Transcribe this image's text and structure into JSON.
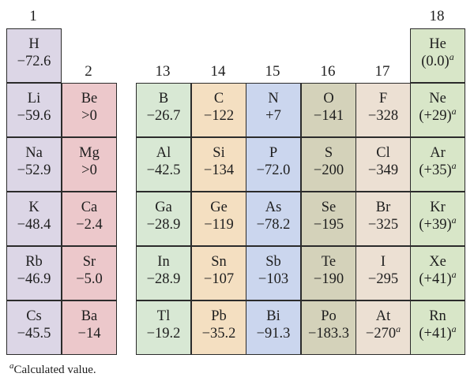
{
  "group_labels": {
    "g1": "1",
    "g2": "2",
    "g13": "13",
    "g14": "14",
    "g15": "15",
    "g16": "16",
    "g17": "17",
    "g18": "18"
  },
  "colors": {
    "group1": "#dcd6e6",
    "group2": "#ecc8cb",
    "group13": "#d8e8d4",
    "group14": "#f4dfc1",
    "group15": "#cbd6ee",
    "group16": "#d4d2ba",
    "group17": "#ece0d3",
    "group18": "#d8e6c8"
  },
  "footnote_marker": "a",
  "footnote": "Calculated value.",
  "elements": {
    "H": {
      "symbol": "H",
      "value": "−72.6"
    },
    "Li": {
      "symbol": "Li",
      "value": "−59.6"
    },
    "Na": {
      "symbol": "Na",
      "value": "−52.9"
    },
    "K": {
      "symbol": "K",
      "value": "−48.4"
    },
    "Rb": {
      "symbol": "Rb",
      "value": "−46.9"
    },
    "Cs": {
      "symbol": "Cs",
      "value": "−45.5"
    },
    "Be": {
      "symbol": "Be",
      "value": ">0"
    },
    "Mg": {
      "symbol": "Mg",
      "value": ">0"
    },
    "Ca": {
      "symbol": "Ca",
      "value": "−2.4"
    },
    "Sr": {
      "symbol": "Sr",
      "value": "−5.0"
    },
    "Ba": {
      "symbol": "Ba",
      "value": "−14"
    },
    "B": {
      "symbol": "B",
      "value": "−26.7"
    },
    "Al": {
      "symbol": "Al",
      "value": "−42.5"
    },
    "Ga": {
      "symbol": "Ga",
      "value": "−28.9"
    },
    "In": {
      "symbol": "In",
      "value": "−28.9"
    },
    "Tl": {
      "symbol": "Tl",
      "value": "−19.2"
    },
    "C": {
      "symbol": "C",
      "value": "−122"
    },
    "Si": {
      "symbol": "Si",
      "value": "−134"
    },
    "Ge": {
      "symbol": "Ge",
      "value": "−119"
    },
    "Sn": {
      "symbol": "Sn",
      "value": "−107"
    },
    "Pb": {
      "symbol": "Pb",
      "value": "−35.2"
    },
    "N": {
      "symbol": "N",
      "value": "+7"
    },
    "P": {
      "symbol": "P",
      "value": "−72.0"
    },
    "As": {
      "symbol": "As",
      "value": "−78.2"
    },
    "Sb": {
      "symbol": "Sb",
      "value": "−103"
    },
    "Bi": {
      "symbol": "Bi",
      "value": "−91.3"
    },
    "O": {
      "symbol": "O",
      "value": "−141"
    },
    "S": {
      "symbol": "S",
      "value": "−200"
    },
    "Se": {
      "symbol": "Se",
      "value": "−195"
    },
    "Te": {
      "symbol": "Te",
      "value": "−190"
    },
    "Po": {
      "symbol": "Po",
      "value": "−183.3"
    },
    "F": {
      "symbol": "F",
      "value": "−328"
    },
    "Cl": {
      "symbol": "Cl",
      "value": "−349"
    },
    "Br": {
      "symbol": "Br",
      "value": "−325"
    },
    "I": {
      "symbol": "I",
      "value": "−295"
    },
    "At": {
      "symbol": "At",
      "value": "−270"
    },
    "He": {
      "symbol": "He",
      "value": "(0.0)"
    },
    "Ne": {
      "symbol": "Ne",
      "value": "(+29)"
    },
    "Ar": {
      "symbol": "Ar",
      "value": "(+35)"
    },
    "Kr": {
      "symbol": "Kr",
      "value": "(+39)"
    },
    "Xe": {
      "symbol": "Xe",
      "value": "(+41)"
    },
    "Rn": {
      "symbol": "Rn",
      "value": "(+41)"
    }
  }
}
